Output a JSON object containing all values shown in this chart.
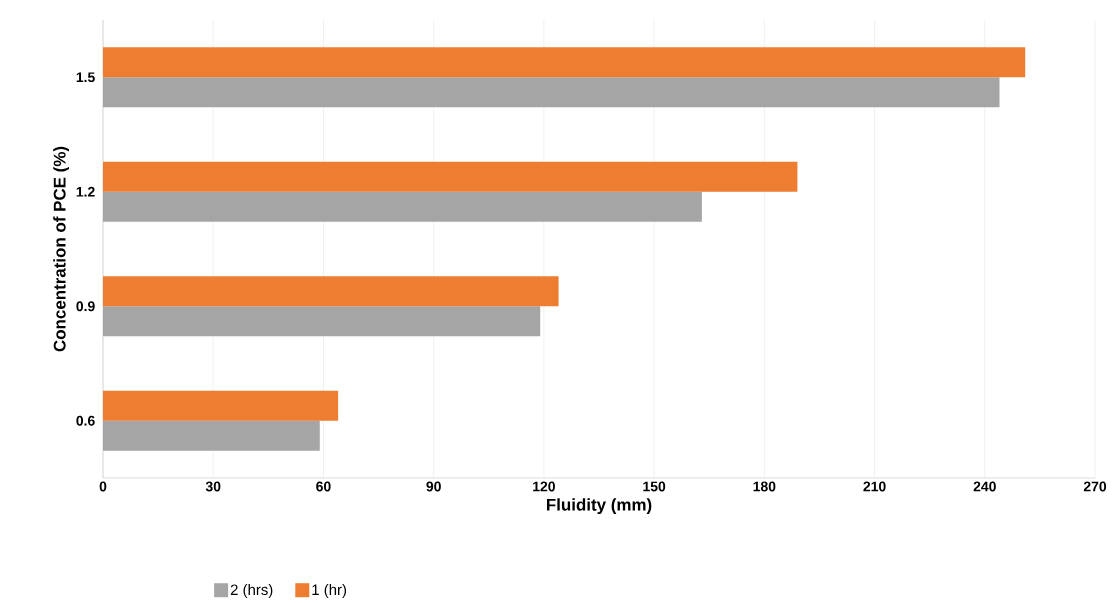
{
  "chart_data": {
    "type": "bar",
    "orientation": "horizontal",
    "xlabel": "Fluidity (mm)",
    "ylabel": "Concentration of PCE (%)",
    "categories": [
      "1.5",
      "1.2",
      "0.9",
      "0.6"
    ],
    "series": [
      {
        "name": "2 (hrs)",
        "color": "#a5a5a5",
        "values": [
          244,
          163,
          119,
          59
        ]
      },
      {
        "name": "1 (hr)",
        "color": "#ed7d31",
        "values": [
          251,
          189,
          124,
          64
        ]
      }
    ],
    "xlim": [
      0,
      270
    ],
    "xticks": [
      0,
      30,
      60,
      90,
      120,
      150,
      180,
      210,
      240,
      270
    ],
    "grid": "x",
    "legend": "bottom left"
  }
}
